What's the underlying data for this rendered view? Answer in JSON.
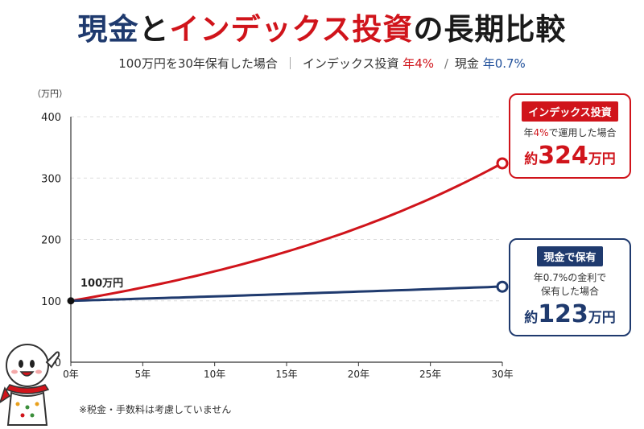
{
  "title": {
    "part1": "現金",
    "part2": "と",
    "part3": "インデックス投資",
    "part4": "の長期比較"
  },
  "subtitle": {
    "text": "100万円を30年保有した場合",
    "sep1": "｜",
    "index_label": "インデックス投資",
    "index_rate": "年4%",
    "sep2": "/",
    "cash_label": "現金",
    "cash_rate": "年0.7%"
  },
  "start_label": "100万円",
  "callouts": {
    "index": {
      "tag": "インデックス投資",
      "desc_pre": "年",
      "desc_rate": "4%",
      "desc_post": "で運用した場合",
      "amount_pre": "約",
      "amount_num": "324",
      "amount_post": "万円"
    },
    "cash": {
      "tag": "現金で保有",
      "desc1": "年0.7%の金利で",
      "desc2": "保有した場合",
      "amount_pre": "約",
      "amount_num": "123",
      "amount_post": "万円"
    }
  },
  "note": "※税金・手数料は考慮していません",
  "colors": {
    "index": "#d0141b",
    "cash": "#1f3a6e",
    "grid": "#dddddd"
  },
  "chart_data": {
    "type": "line",
    "ylabel": "（万円）",
    "ylim": [
      0,
      400
    ],
    "yticks": [
      0,
      100,
      200,
      300,
      400
    ],
    "xlim": [
      0,
      30
    ],
    "xticks": [
      0,
      5,
      10,
      15,
      20,
      25,
      30
    ],
    "xtick_labels": [
      "0年",
      "5年",
      "10年",
      "15年",
      "20年",
      "25年",
      "30年"
    ],
    "grid": true,
    "series": [
      {
        "name": "インデックス投資",
        "color": "#d0141b",
        "x": [
          0,
          5,
          10,
          15,
          20,
          25,
          30
        ],
        "values": [
          100,
          122,
          148,
          180,
          219,
          267,
          324
        ]
      },
      {
        "name": "現金で保有",
        "color": "#1f3a6e",
        "x": [
          0,
          5,
          10,
          15,
          20,
          25,
          30
        ],
        "values": [
          100,
          104,
          107,
          111,
          115,
          119,
          123
        ]
      }
    ]
  }
}
